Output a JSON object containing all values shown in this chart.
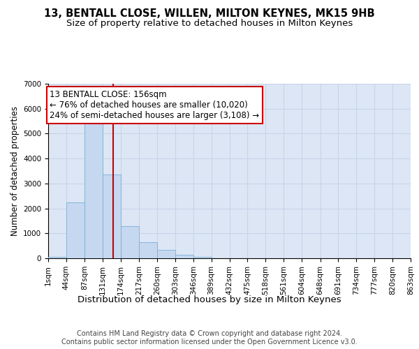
{
  "title": "13, BENTALL CLOSE, WILLEN, MILTON KEYNES, MK15 9HB",
  "subtitle": "Size of property relative to detached houses in Milton Keynes",
  "xlabel": "Distribution of detached houses by size in Milton Keynes",
  "ylabel": "Number of detached properties",
  "bin_edges": [
    1,
    44,
    87,
    131,
    174,
    217,
    260,
    303,
    346,
    389,
    432,
    475,
    518,
    561,
    604,
    648,
    691,
    734,
    777,
    820,
    863
  ],
  "bar_heights": [
    60,
    2250,
    5400,
    3350,
    1300,
    650,
    350,
    130,
    70,
    0,
    0,
    0,
    0,
    0,
    0,
    0,
    0,
    0,
    0,
    0
  ],
  "bar_color": "#c5d8f0",
  "bar_edgecolor": "#7aafd4",
  "grid_color": "#c8d4e8",
  "background_color": "#dce6f5",
  "property_size": 156,
  "vline_color": "#cc0000",
  "annotation_text": "13 BENTALL CLOSE: 156sqm\n← 76% of detached houses are smaller (10,020)\n24% of semi-detached houses are larger (3,108) →",
  "annotation_box_color": "#cc0000",
  "ylim": [
    0,
    7000
  ],
  "yticks": [
    0,
    1000,
    2000,
    3000,
    4000,
    5000,
    6000,
    7000
  ],
  "tick_labels": [
    "1sqm",
    "44sqm",
    "87sqm",
    "131sqm",
    "174sqm",
    "217sqm",
    "260sqm",
    "303sqm",
    "346sqm",
    "389sqm",
    "432sqm",
    "475sqm",
    "518sqm",
    "561sqm",
    "604sqm",
    "648sqm",
    "691sqm",
    "734sqm",
    "777sqm",
    "820sqm",
    "863sqm"
  ],
  "footer_text": "Contains HM Land Registry data © Crown copyright and database right 2024.\nContains public sector information licensed under the Open Government Licence v3.0.",
  "title_fontsize": 10.5,
  "subtitle_fontsize": 9.5,
  "xlabel_fontsize": 9.5,
  "ylabel_fontsize": 8.5,
  "tick_fontsize": 7.5,
  "annotation_fontsize": 8.5,
  "footer_fontsize": 7
}
